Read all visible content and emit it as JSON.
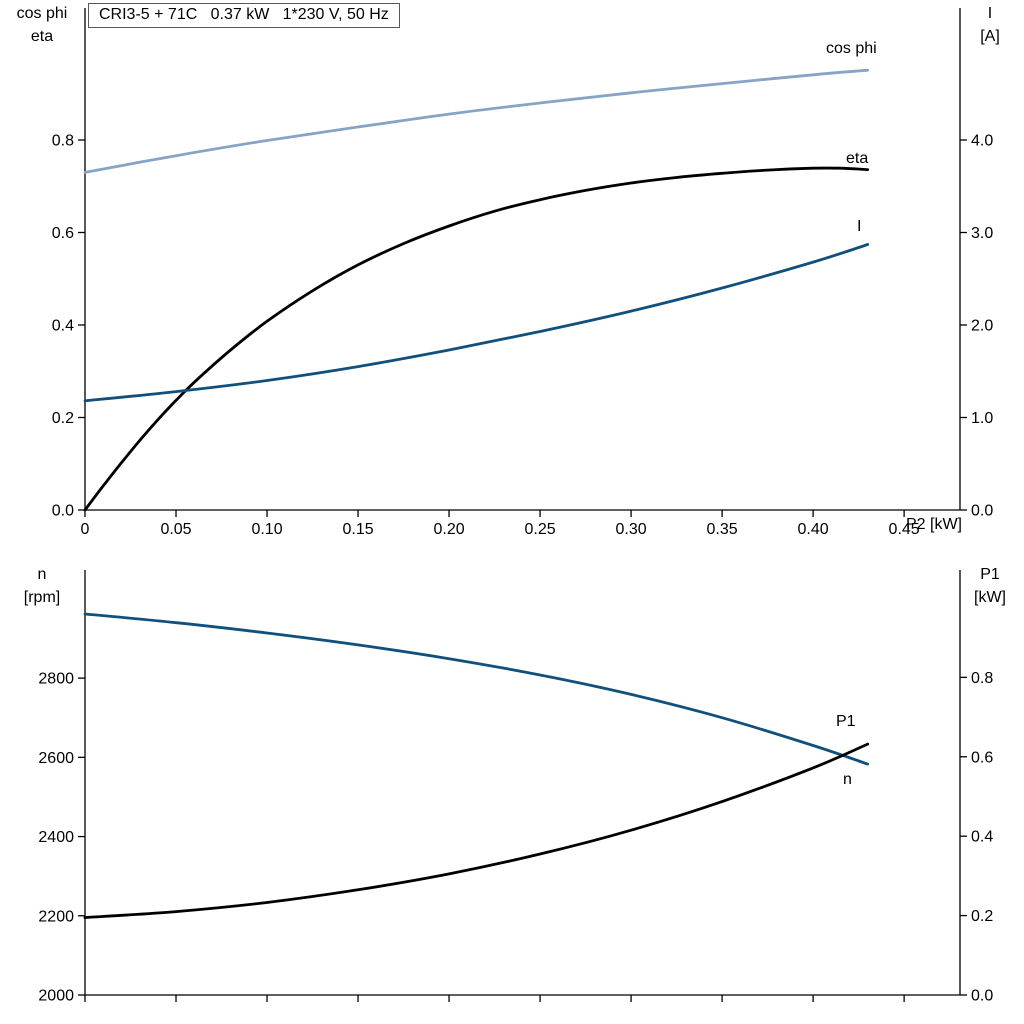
{
  "header": {
    "title_box": "CRI3-5 + 71C   0.37 kW   1*230 V, 50 Hz"
  },
  "axes_corner": {
    "top_left_line1": "cos phi",
    "top_left_line2": "eta",
    "top_right_line1": "I",
    "top_right_line2": "[A]",
    "x_axis_label": "P2 [kW]",
    "bottom_left_line1": "n",
    "bottom_left_line2": "[rpm]",
    "bottom_right_line1": "P1",
    "bottom_right_line2": "[kW]"
  },
  "colors": {
    "light_blue": "#86a4c5",
    "dark_blue": "#11507d",
    "black": "#000000",
    "axis": "#000000"
  },
  "chart_data": [
    {
      "id": "chart-top",
      "type": "line",
      "title": "CRI3-5 + 71C 0.37 kW 1*230 V, 50 Hz",
      "x_axis": {
        "label": "P2 [kW]",
        "lim": [
          0,
          0.4807
        ],
        "ticks": [
          0,
          0.05,
          0.1,
          0.15,
          0.2,
          0.25,
          0.3,
          0.35,
          0.4,
          0.45
        ],
        "tick_labels": [
          "0",
          "0.05",
          "0.10",
          "0.15",
          "0.20",
          "0.25",
          "0.30",
          "0.35",
          "0.40",
          "0.45"
        ],
        "show_labels": true
      },
      "left_axis": {
        "title": "cos phi / eta",
        "lim": [
          0,
          1.0854
        ],
        "ticks": [
          0,
          0.2,
          0.4,
          0.6,
          0.8
        ],
        "tick_labels": [
          "0.0",
          "0.2",
          "0.4",
          "0.6",
          "0.8"
        ]
      },
      "right_axis": {
        "title": "I [A]",
        "lim": [
          0,
          5.427
        ],
        "ticks": [
          0,
          1,
          2,
          3,
          4
        ],
        "tick_labels": [
          "0.0",
          "1.0",
          "2.0",
          "3.0",
          "4.0"
        ]
      },
      "series": [
        {
          "name": "cos phi",
          "axis": "left",
          "color": "light_blue",
          "x": [
            0,
            0.05,
            0.1,
            0.15,
            0.2,
            0.25,
            0.3,
            0.35,
            0.4,
            0.43
          ],
          "y": [
            0.73,
            0.766,
            0.799,
            0.828,
            0.856,
            0.88,
            0.902,
            0.922,
            0.941,
            0.951
          ]
        },
        {
          "name": "eta",
          "axis": "left",
          "color": "black",
          "x": [
            0,
            0.01,
            0.02,
            0.03,
            0.04,
            0.05,
            0.06,
            0.08,
            0.1,
            0.125,
            0.15,
            0.175,
            0.2,
            0.225,
            0.25,
            0.275,
            0.3,
            0.325,
            0.35,
            0.375,
            0.4,
            0.415,
            0.43
          ],
          "y": [
            0,
            0.052,
            0.102,
            0.15,
            0.195,
            0.237,
            0.276,
            0.346,
            0.408,
            0.474,
            0.53,
            0.576,
            0.614,
            0.646,
            0.671,
            0.691,
            0.707,
            0.719,
            0.728,
            0.735,
            0.739,
            0.739,
            0.736
          ]
        },
        {
          "name": "I",
          "axis": "right",
          "color": "dark_blue",
          "x": [
            0,
            0.05,
            0.1,
            0.15,
            0.2,
            0.25,
            0.3,
            0.35,
            0.4,
            0.43
          ],
          "y": [
            1.18,
            1.28,
            1.4,
            1.55,
            1.73,
            1.93,
            2.15,
            2.4,
            2.68,
            2.87
          ]
        }
      ]
    },
    {
      "id": "chart-bottom",
      "type": "line",
      "title": "",
      "x_axis": {
        "label": "P2 [kW]",
        "lim": [
          0,
          0.4807
        ],
        "ticks": [
          0,
          0.05,
          0.1,
          0.15,
          0.2,
          0.25,
          0.3,
          0.35,
          0.4,
          0.45
        ],
        "tick_labels": [],
        "show_labels": false
      },
      "left_axis": {
        "title": "n [rpm]",
        "lim": [
          2000,
          3073
        ],
        "ticks": [
          2000,
          2200,
          2400,
          2600,
          2800
        ],
        "tick_labels": [
          "2000",
          "2200",
          "2400",
          "2600",
          "2800"
        ]
      },
      "right_axis": {
        "title": "P1 [kW]",
        "lim": [
          0,
          1.0704
        ],
        "ticks": [
          0,
          0.2,
          0.4,
          0.6,
          0.8
        ],
        "tick_labels": [
          "0.0",
          "0.2",
          "0.4",
          "0.6",
          "0.8"
        ]
      },
      "series": [
        {
          "name": "n",
          "axis": "left",
          "color": "dark_blue",
          "x": [
            0,
            0.05,
            0.1,
            0.15,
            0.2,
            0.25,
            0.3,
            0.35,
            0.4,
            0.43
          ],
          "y": [
            2962,
            2940,
            2914,
            2884,
            2849,
            2808,
            2759,
            2700,
            2630,
            2583
          ]
        },
        {
          "name": "P1",
          "axis": "right",
          "color": "black",
          "x": [
            0,
            0.05,
            0.1,
            0.15,
            0.2,
            0.25,
            0.3,
            0.35,
            0.4,
            0.43
          ],
          "y": [
            0.195,
            0.21,
            0.233,
            0.265,
            0.305,
            0.355,
            0.415,
            0.487,
            0.572,
            0.632
          ]
        }
      ]
    }
  ]
}
